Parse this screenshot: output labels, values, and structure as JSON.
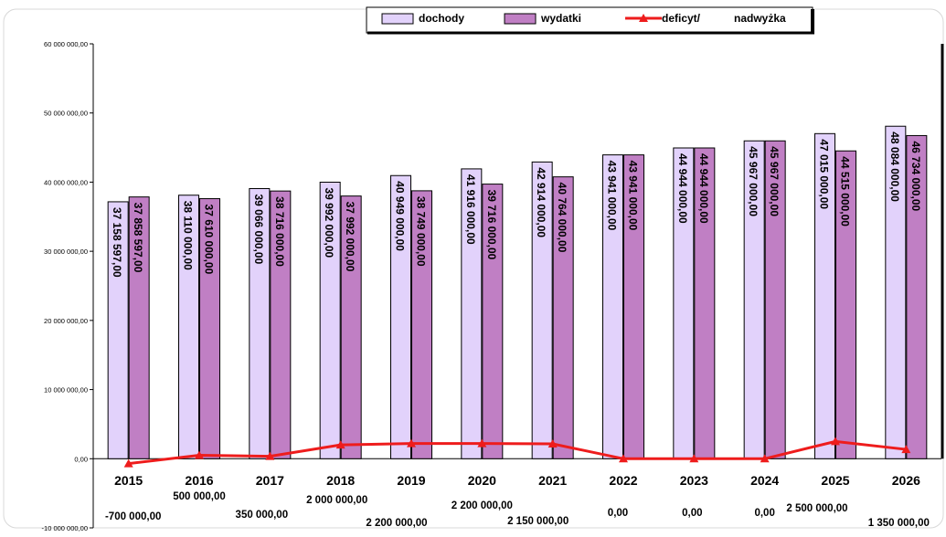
{
  "chart_data": {
    "type": "bar",
    "categories": [
      "2015",
      "2016",
      "2017",
      "2018",
      "2019",
      "2020",
      "2021",
      "2022",
      "2023",
      "2024",
      "2025",
      "2026"
    ],
    "ylim": [
      -10000000,
      60000000
    ],
    "y_ticks": [
      "60 000 000,00",
      "50 000 000,00",
      "40 000 000,00",
      "30 000 000,00",
      "20 000 000,00",
      "10 000 000,00",
      "0,00",
      "-10 000 000,00"
    ],
    "y_tick_values": [
      60000000,
      50000000,
      40000000,
      30000000,
      20000000,
      10000000,
      0,
      -10000000
    ],
    "legend_placement": "top",
    "legend": {
      "dochody": "dochody",
      "wydatki": "wydatki",
      "deficyt": "deficyt/",
      "nadwyzka": "nadwyżka"
    },
    "colors": {
      "dochody": "#e2d2fb",
      "wydatki": "#c07fc4",
      "deficyt": "#ee1c1c",
      "bar_stroke": "#000000"
    },
    "series": [
      {
        "name": "dochody",
        "values": [
          37158597,
          38110000,
          39066000,
          39992000,
          40949000,
          41916000,
          42914000,
          43941000,
          44944000,
          45967000,
          47015000,
          48084000
        ],
        "labels": [
          "37 158 597,00",
          "38 110 000,00",
          "39 066 000,00",
          "39 992 000,00",
          "40 949 000,00",
          "41 916 000,00",
          "42 914 000,00",
          "43 941 000,00",
          "44 944 000,00",
          "45 967 000,00",
          "47 015 000,00",
          "48 084 000,00"
        ]
      },
      {
        "name": "wydatki",
        "values": [
          37858597,
          37610000,
          38716000,
          37992000,
          38749000,
          39716000,
          40764000,
          43941000,
          44944000,
          45967000,
          44515000,
          46734000
        ],
        "labels": [
          "37 858 597,00",
          "37 610 000,00",
          "38 716 000,00",
          "37 992 000,00",
          "38 749 000,00",
          "39 716 000,00",
          "40 764 000,00",
          "43 941 000,00",
          "44 944 000,00",
          "45 967 000,00",
          "44 515 000,00",
          "46 734 000,00"
        ]
      },
      {
        "name": "deficyt/ nadwyżka",
        "type": "line",
        "values": [
          -700000,
          500000,
          350000,
          2000000,
          2200000,
          2200000,
          2150000,
          0,
          0,
          0,
          2500000,
          1350000
        ],
        "labels": [
          "-700 000,00",
          "500 000,00",
          "350 000,00",
          "2 000 000,00",
          "2 200 000,00",
          "2 200 000,00",
          "2 150 000,00",
          "0,00",
          "0,00",
          "0,00",
          "2 500 000,00",
          "1 350 000,00"
        ]
      }
    ]
  }
}
